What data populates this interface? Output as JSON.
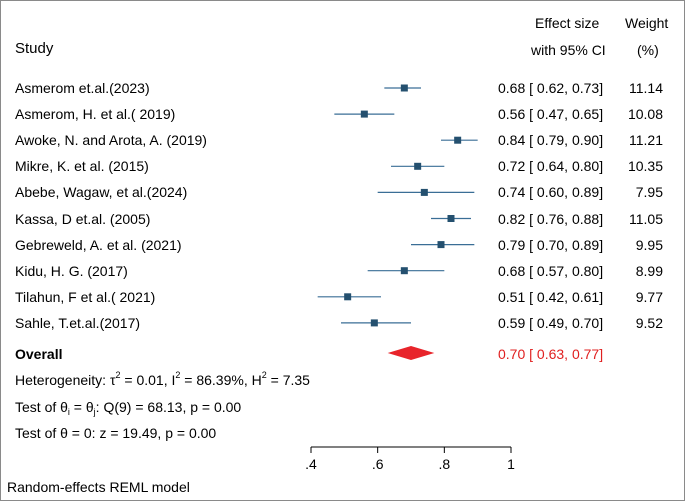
{
  "chart_data": {
    "type": "forest",
    "header": {
      "study": "Study",
      "effect_line1": "Effect size",
      "effect_line2": "with 95% CI",
      "weight_line1": "Weight",
      "weight_line2": "(%)"
    },
    "studies": [
      {
        "name": "Asmerom et.al.(2023)",
        "es": 0.68,
        "lo": 0.62,
        "hi": 0.73,
        "ci_text": "0.68 [ 0.62, 0.73]",
        "weight": "11.14"
      },
      {
        "name": "Asmerom, H. et al.( 2019)",
        "es": 0.56,
        "lo": 0.47,
        "hi": 0.65,
        "ci_text": "0.56 [ 0.47, 0.65]",
        "weight": "10.08"
      },
      {
        "name": "Awoke, N. and Arota, A. (2019)",
        "es": 0.84,
        "lo": 0.79,
        "hi": 0.9,
        "ci_text": "0.84 [ 0.79, 0.90]",
        "weight": "11.21"
      },
      {
        "name": "Mikre, K. et al. (2015)",
        "es": 0.72,
        "lo": 0.64,
        "hi": 0.8,
        "ci_text": "0.72 [ 0.64, 0.80]",
        "weight": "10.35"
      },
      {
        "name": "Abebe, Wagaw, et al.(2024)",
        "es": 0.74,
        "lo": 0.6,
        "hi": 0.89,
        "ci_text": "0.74 [ 0.60, 0.89]",
        "weight": "7.95"
      },
      {
        "name": "Kassa, D et.al. (2005)",
        "es": 0.82,
        "lo": 0.76,
        "hi": 0.88,
        "ci_text": "0.82 [ 0.76, 0.88]",
        "weight": "11.05"
      },
      {
        "name": "Gebreweld, A.  et al. (2021)",
        "es": 0.79,
        "lo": 0.7,
        "hi": 0.89,
        "ci_text": "0.79 [ 0.70, 0.89]",
        "weight": "9.95"
      },
      {
        "name": "Kidu, H. G. (2017)",
        "es": 0.68,
        "lo": 0.57,
        "hi": 0.8,
        "ci_text": "0.68 [ 0.57, 0.80]",
        "weight": "8.99"
      },
      {
        "name": "Tilahun, F et al.( 2021)",
        "es": 0.51,
        "lo": 0.42,
        "hi": 0.61,
        "ci_text": "0.51 [ 0.42, 0.61]",
        "weight": "9.77"
      },
      {
        "name": "Sahle, T.et.al.(2017)",
        "es": 0.59,
        "lo": 0.49,
        "hi": 0.7,
        "ci_text": "0.59 [ 0.49, 0.70]",
        "weight": "9.52"
      }
    ],
    "overall": {
      "label": "Overall",
      "es": 0.7,
      "lo": 0.63,
      "hi": 0.77,
      "ci_text": "0.70 [ 0.63, 0.77]"
    },
    "heterogeneity": {
      "prefix": "Heterogeneity: ",
      "tau_symbol": "τ",
      "tau_exp": "2",
      "tau_value": " = 0.01, ",
      "i_symbol": "I",
      "i_exp": "2",
      "i_value": " = 86.39%, ",
      "h_symbol": "H",
      "h_exp": "2",
      "h_value": " = 7.35"
    },
    "test_theta_i": {
      "prefix": "Test of θ",
      "sub1": "i",
      "mid": " = θ",
      "sub2": "j",
      "rest": ": Q(9) = 68.13, p = 0.00"
    },
    "test_theta_0": "Test of θ = 0: z = 19.49, p = 0.00",
    "x_axis": {
      "range": [
        0.4,
        1.0
      ],
      "ticks": [
        0.4,
        0.6,
        0.8,
        1.0
      ],
      "tick_labels": [
        ".4",
        ".6",
        ".8",
        "1"
      ]
    },
    "model_note": "Random-effects REML model",
    "colors": {
      "marker": "#24506f",
      "ci_line": "#3a6e96",
      "overall": "#e8242b",
      "text": "#000000",
      "axis": "#000000"
    }
  }
}
